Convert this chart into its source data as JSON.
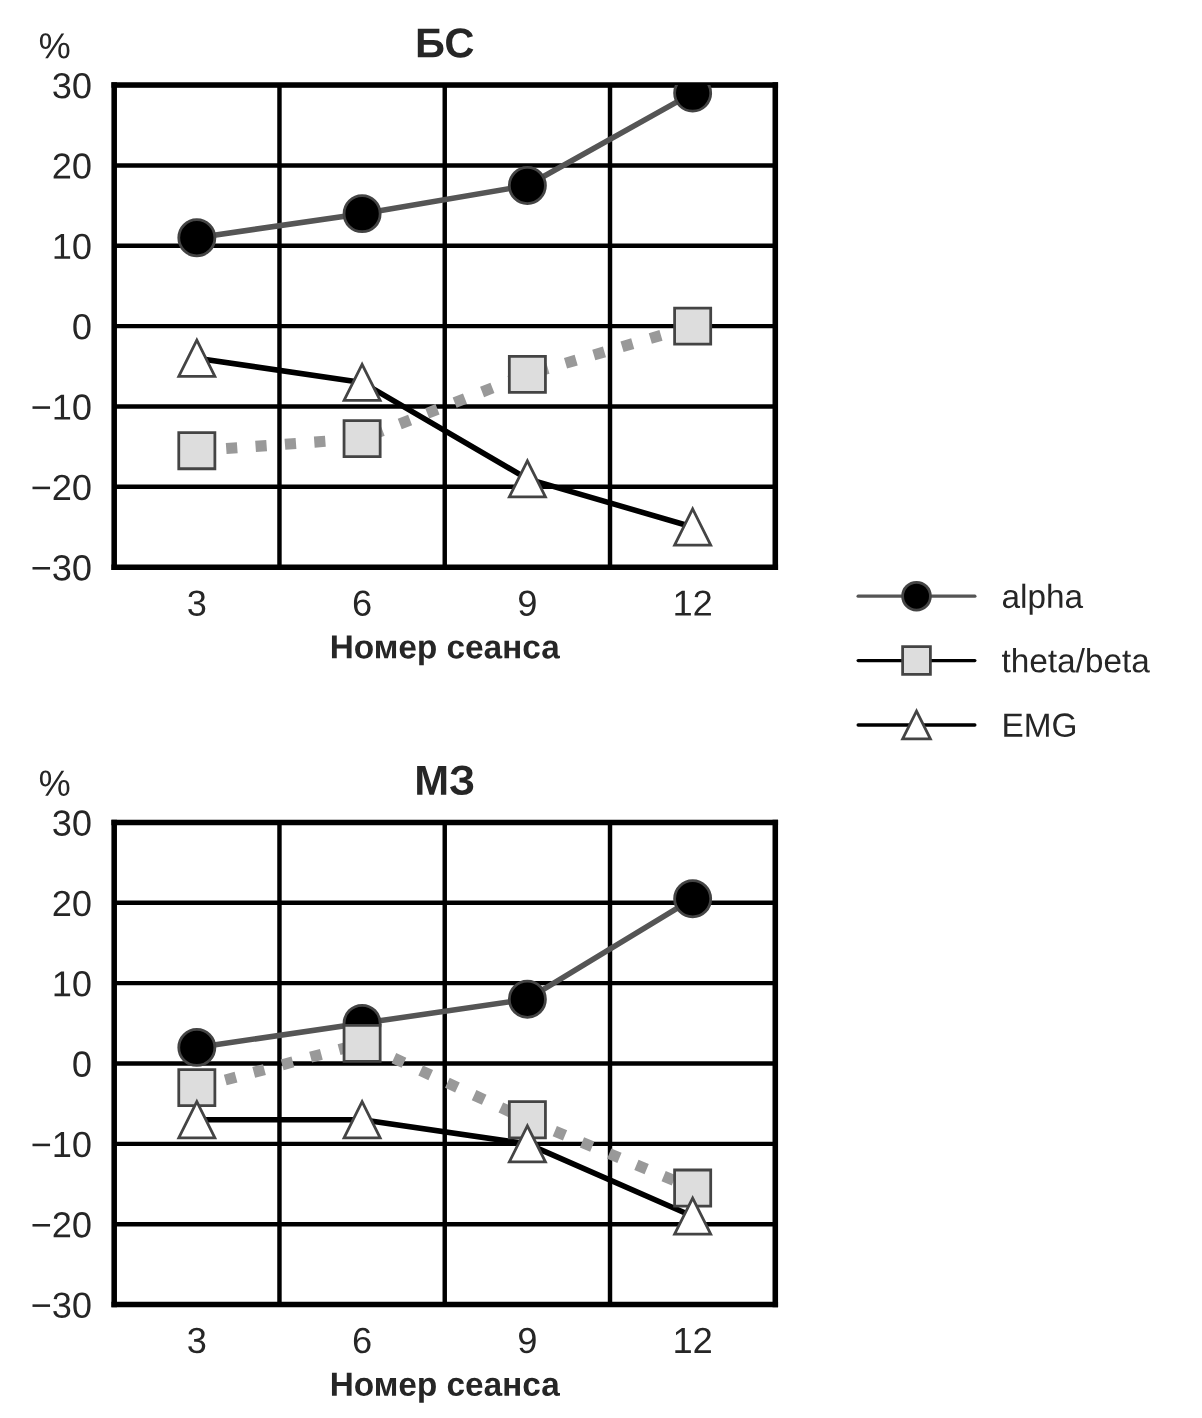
{
  "chart_data": [
    {
      "type": "line",
      "title": "БС",
      "ylabel": "%",
      "xlabel": "Номер сеанса",
      "categories": [
        "3",
        "6",
        "9",
        "12"
      ],
      "ylim": [
        -30,
        30
      ],
      "yticks": [
        -30,
        -20,
        -10,
        0,
        10,
        20,
        30
      ],
      "grid": true,
      "legend": "right",
      "series": [
        {
          "name": "alpha",
          "color": "#555555",
          "marker": "circle",
          "line_style": "solid",
          "values": [
            11,
            14,
            17.5,
            29
          ]
        },
        {
          "name": "theta/beta",
          "color": "#999999",
          "marker": "square",
          "line_style": "dotted",
          "values": [
            -15.5,
            -14,
            -6,
            0
          ]
        },
        {
          "name": "EMG",
          "color": "#000000",
          "marker": "triangle",
          "line_style": "solid",
          "values": [
            -4,
            -7,
            -19,
            -25
          ]
        }
      ]
    },
    {
      "type": "line",
      "title": "МЗ",
      "ylabel": "%",
      "xlabel": "Номер сеанса",
      "categories": [
        "3",
        "6",
        "9",
        "12"
      ],
      "ylim": [
        -30,
        30
      ],
      "yticks": [
        -30,
        -20,
        -10,
        0,
        10,
        20,
        30
      ],
      "grid": true,
      "series": [
        {
          "color": "#555555",
          "marker": "circle",
          "line_style": "solid",
          "values": [
            2,
            5,
            8,
            20.5
          ]
        },
        {
          "color": "#999999",
          "marker": "square",
          "line_style": "dotted",
          "values": [
            -3,
            2.5,
            -7,
            -15.5
          ]
        },
        {
          "color": "#000000",
          "marker": "triangle",
          "line_style": "solid",
          "values": [
            -7,
            -7,
            -10,
            -19
          ]
        }
      ]
    }
  ]
}
